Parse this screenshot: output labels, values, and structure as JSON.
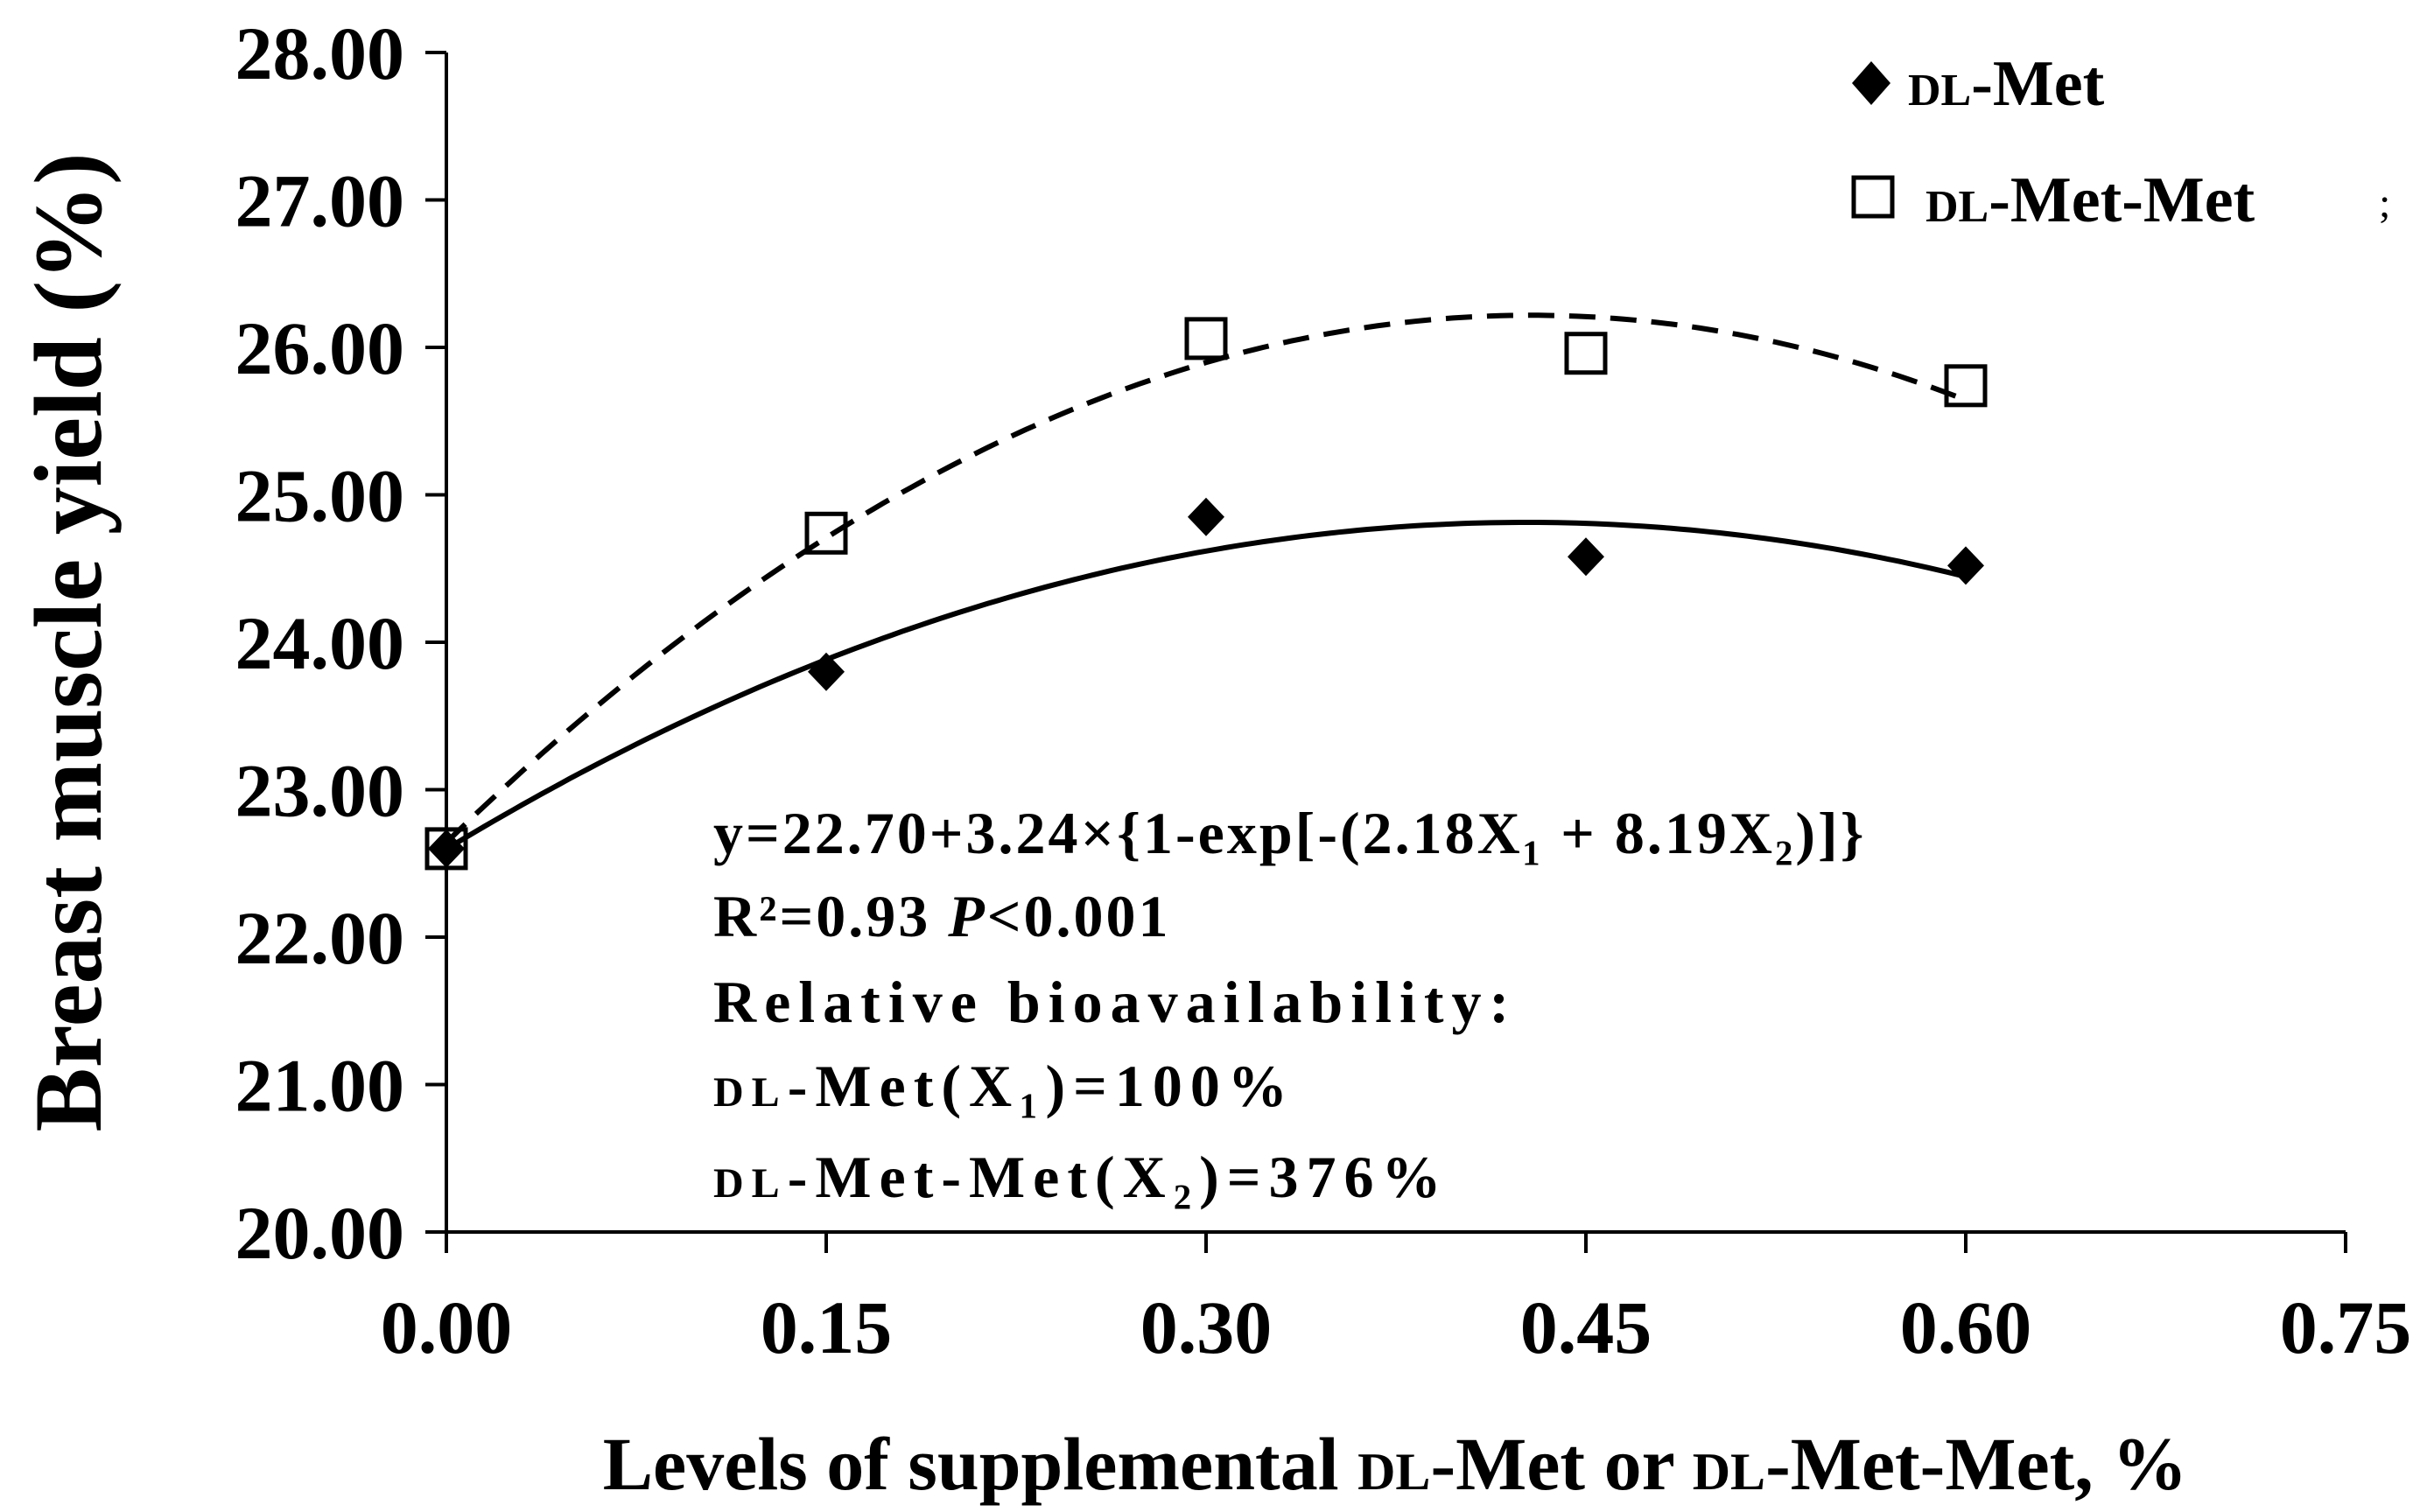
{
  "chart_data": {
    "type": "scatter",
    "title": "",
    "xlabel_parts": [
      {
        "text": "Levels of supplemental ",
        "sc": false
      },
      {
        "text": "dl",
        "sc": true
      },
      {
        "text": "-Met or ",
        "sc": false
      },
      {
        "text": "dl",
        "sc": true
      },
      {
        "text": "-Met-Met, %",
        "sc": false
      }
    ],
    "ylabel": "Breast muscle yield (%)",
    "xlim": [
      0,
      0.75
    ],
    "ylim": [
      20,
      28
    ],
    "x_ticks": [
      0,
      0.15,
      0.3,
      0.45,
      0.6,
      0.75
    ],
    "x_tick_labels": [
      "0.00",
      "0.15",
      "0.30",
      "0.45",
      "0.60",
      "0.75"
    ],
    "y_ticks": [
      20,
      21,
      22,
      23,
      24,
      25,
      26,
      27,
      28
    ],
    "y_tick_labels": [
      "20.00",
      "21.00",
      "22.00",
      "23.00",
      "24.00",
      "25.00",
      "26.00",
      "27.00",
      "28.00"
    ],
    "series": [
      {
        "name": "DL-Met",
        "legend_prefix": "dl",
        "legend_suffix": "-Met",
        "marker": "filled-diamond",
        "line": "solid",
        "x": [
          0,
          0.15,
          0.3,
          0.45,
          0.6
        ],
        "y": [
          22.6,
          23.8,
          24.85,
          24.58,
          24.52
        ],
        "fit": {
          "a": 22.7,
          "b": 3.24,
          "c": 2.18,
          "min": 0.98,
          "t0": 0.58,
          "t1": 0.62
        }
      },
      {
        "name": "DL-Met-Met",
        "legend_prefix": "dl",
        "legend_suffix": "-Met-Met",
        "marker": "open-square",
        "line": "dashed",
        "x": [
          0,
          0.15,
          0.3,
          0.45,
          0.6
        ],
        "y": [
          22.6,
          24.74,
          26.06,
          25.96,
          25.74
        ],
        "fit": {
          "a": 22.7,
          "b": 3.24,
          "c": 8.19,
          "min": 1.0,
          "t0": 0.35,
          "t1": 0.5
        }
      }
    ],
    "legend_stray_mark": ";",
    "annotations": {
      "equation": "y=22.70+3.24×{1-exp[-(2.18X₁ + 8.19X₂)]}",
      "r2_prefix": "R²=0.93 ",
      "p_label": "P",
      "p_value": "<0.001",
      "bioavailability_title": "Relative bioavailability:",
      "line1_prefix": "dl",
      "line1_body": "-Met(X₁)=100%",
      "line2_prefix": "dl",
      "line2_body": "-Met-Met(X₂)=376%"
    }
  }
}
